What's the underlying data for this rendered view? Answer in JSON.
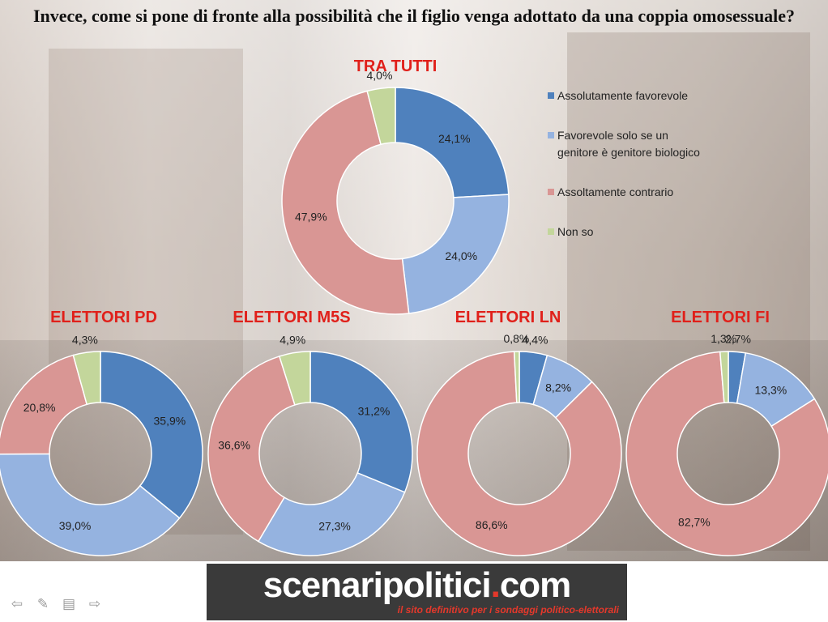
{
  "title": "Invece, come si pone di fronte alla possibilità che il figlio venga adottato da una coppia omosessuale?",
  "legend": [
    {
      "label": "Assolutamente favorevole",
      "color": "#4f81bd"
    },
    {
      "label": "Favorevole solo se un genitore è genitore biologico",
      "color": "#95b3e0"
    },
    {
      "label": "Assoltamente contrario",
      "color": "#d99694"
    },
    {
      "label": "Non so",
      "color": "#c3d69b"
    }
  ],
  "chart_data": [
    {
      "type": "pie",
      "title": "TRA TUTTI",
      "categories": [
        "Assolutamente favorevole",
        "Favorevole solo se un genitore è genitore biologico",
        "Assoltamente contrario",
        "Non so"
      ],
      "values": [
        24.1,
        24.0,
        47.9,
        4.0
      ],
      "labels": [
        "24,1%",
        "24,0%",
        "47,9%",
        "4,0%"
      ]
    },
    {
      "type": "pie",
      "title": "ELETTORI PD",
      "categories": [
        "Assolutamente favorevole",
        "Favorevole solo se un genitore è genitore biologico",
        "Assoltamente contrario",
        "Non so"
      ],
      "values": [
        35.9,
        39.0,
        20.8,
        4.3
      ],
      "labels": [
        "35,9%",
        "39,0%",
        "20,8%",
        "4,3%"
      ]
    },
    {
      "type": "pie",
      "title": "ELETTORI M5S",
      "categories": [
        "Assolutamente favorevole",
        "Favorevole solo se un genitore è genitore biologico",
        "Assoltamente contrario",
        "Non so"
      ],
      "values": [
        31.2,
        27.3,
        36.6,
        4.9
      ],
      "labels": [
        "31,2%",
        "27,3%",
        "36,6%",
        "4,9%"
      ]
    },
    {
      "type": "pie",
      "title": "ELETTORI LN",
      "categories": [
        "Assolutamente favorevole",
        "Favorevole solo se un genitore è genitore biologico",
        "Assoltamente contrario",
        "Non so"
      ],
      "values": [
        4.4,
        8.2,
        86.6,
        0.8
      ],
      "labels": [
        "4,4%",
        "8,2%",
        "86,6%",
        "0,8%"
      ]
    },
    {
      "type": "pie",
      "title": "ELETTORI FI",
      "categories": [
        "Assolutamente favorevole",
        "Favorevole solo se un genitore è genitore biologico",
        "Assoltamente contrario",
        "Non so"
      ],
      "values": [
        2.7,
        13.3,
        82.7,
        1.3
      ],
      "labels": [
        "2,7%",
        "13,3%",
        "82,7%",
        "1,3%"
      ]
    }
  ],
  "banner": {
    "brand_main": "scenaripolitici",
    "brand_dot": ".",
    "brand_tld": "com",
    "tagline": "il sito definitivo per i sondaggi politico-elettorali"
  },
  "nav": {
    "prev_icon": "arrow-left-icon",
    "pen_icon": "pen-icon",
    "menu_icon": "menu-icon",
    "next_icon": "arrow-right-icon"
  }
}
